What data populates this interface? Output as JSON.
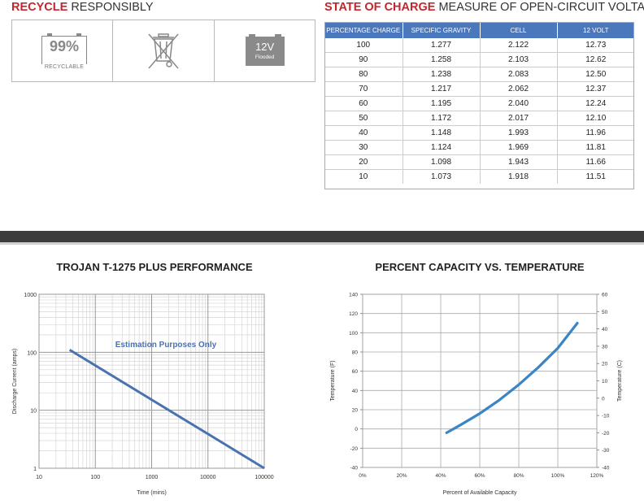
{
  "recycle": {
    "heading_strong": "RECYCLE",
    "heading_rest": "RESPONSIBLY",
    "badge_percent": "99%",
    "badge_label": "RECYCLABLE",
    "battery_voltage": "12V",
    "battery_type": "Flooded",
    "icons": [
      "recyclable-battery-icon",
      "crossed-out-bin-icon",
      "flooded-battery-icon"
    ]
  },
  "state_of_charge": {
    "heading_strong": "STATE OF CHARGE",
    "heading_rest": "MEASURE OF OPEN-CIRCUIT VOLTAGE",
    "header_color": "#4b78bc",
    "columns": [
      "PERCENTAGE CHARGE",
      "SPECIFIC GRAVITY",
      "CELL",
      "12 VOLT"
    ],
    "rows": [
      [
        "100",
        "1.277",
        "2.122",
        "12.73"
      ],
      [
        "90",
        "1.258",
        "2.103",
        "12.62"
      ],
      [
        "80",
        "1.238",
        "2.083",
        "12.50"
      ],
      [
        "70",
        "1.217",
        "2.062",
        "12.37"
      ],
      [
        "60",
        "1.195",
        "2.040",
        "12.24"
      ],
      [
        "50",
        "1.172",
        "2.017",
        "12.10"
      ],
      [
        "40",
        "1.148",
        "1.993",
        "11.96"
      ],
      [
        "30",
        "1.124",
        "1.969",
        "11.81"
      ],
      [
        "20",
        "1.098",
        "1.943",
        "11.66"
      ],
      [
        "10",
        "1.073",
        "1.918",
        "11.51"
      ]
    ]
  },
  "chart_data": [
    {
      "type": "line",
      "title": "TROJAN T-1275 PLUS PERFORMANCE",
      "xlabel": "Time (mins)",
      "ylabel": "Discharge Current (amps)",
      "x_scale": "log",
      "y_scale": "log",
      "xlim": [
        10,
        100000
      ],
      "ylim": [
        1,
        1000
      ],
      "xticks": [
        "10",
        "100",
        "1000",
        "10000",
        "100000"
      ],
      "yticks": [
        "1",
        "10",
        "100",
        "1000"
      ],
      "annotation": "Estimation Purposes Only",
      "grid": true,
      "line_color": "#4a72b0",
      "series": [
        {
          "x": [
            35,
            100000
          ],
          "y": [
            110,
            1
          ]
        }
      ]
    },
    {
      "type": "line",
      "title": "PERCENT CAPACITY VS. TEMPERATURE",
      "xlabel": "Percent of Available Capacity",
      "ylabel": "Temperature (F)",
      "ylabel_right": "Temperature (C)",
      "xlim": [
        0,
        120
      ],
      "ylim": [
        -40,
        140
      ],
      "ylim_right": [
        -40,
        60
      ],
      "xticks": [
        "0%",
        "20%",
        "40%",
        "60%",
        "80%",
        "100%",
        "120%"
      ],
      "yticks": [
        "-40",
        "-20",
        "0",
        "20",
        "40",
        "60",
        "80",
        "100",
        "120",
        "140"
      ],
      "yticks_right": [
        "-40",
        "-30",
        "-20",
        "-10",
        "0",
        "10",
        "20",
        "30",
        "40",
        "50",
        "60"
      ],
      "grid": true,
      "line_color": "#3a85c6",
      "series": [
        {
          "x": [
            43,
            50,
            60,
            70,
            80,
            90,
            100,
            110
          ],
          "y": [
            -4,
            4,
            16,
            30,
            46,
            64,
            84,
            110
          ]
        }
      ]
    }
  ]
}
